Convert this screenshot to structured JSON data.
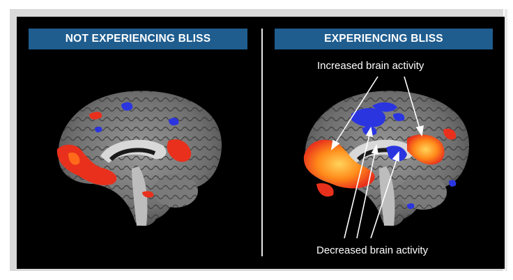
{
  "panels": [
    {
      "label": "NOT EXPERIENCING BLISS"
    },
    {
      "label": "EXPERIENCING BLISS"
    }
  ],
  "annotations": {
    "increased": "Increased brain activity",
    "decreased": "Decreased brain activity"
  },
  "colors": {
    "banner": "#1f5d8f",
    "activation_increase": "#e8301c",
    "activation_strong": "#ff8a1a",
    "activation_decrease": "#2a35e0"
  }
}
